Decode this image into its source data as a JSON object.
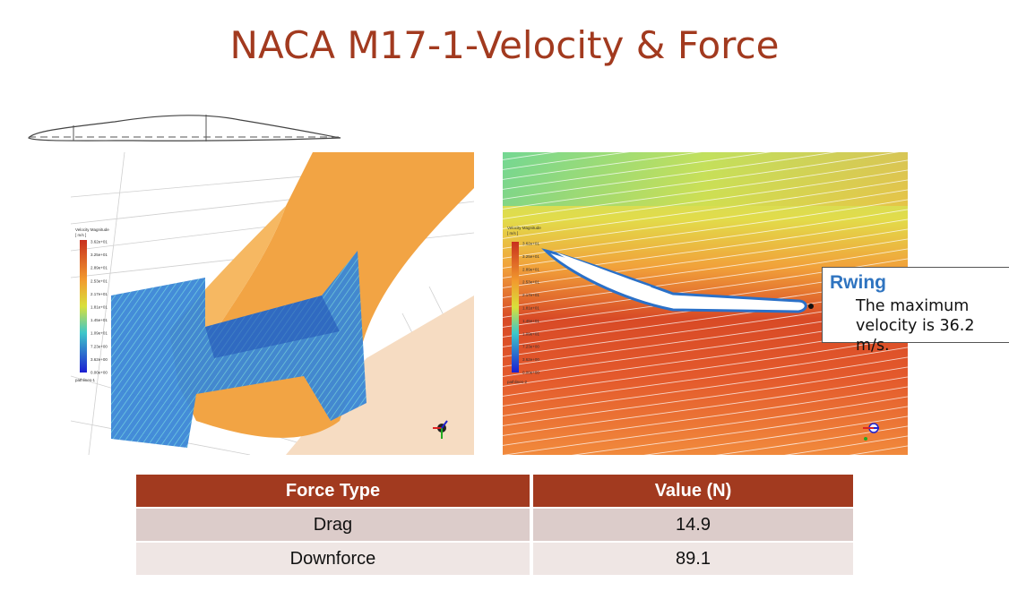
{
  "slide": {
    "title": "NACA M17-1-Velocity & Force"
  },
  "left_panel": {
    "legend": {
      "title_line1": "Velocity Magnitude",
      "title_line2": "[ m/s ]",
      "ticks": [
        "3.62e+01",
        "3.25e+01",
        "2.89e+01",
        "2.53e+01",
        "2.17e+01",
        "1.81e+01",
        "1.45e+01",
        "1.09e+01",
        "7.23e+00",
        "3.62e+00",
        "0.00e+00"
      ],
      "footer": "pathlines-1"
    }
  },
  "right_panel": {
    "legend": {
      "title_line1": "Velocity Magnitude",
      "title_line2": "[ m/s ]",
      "ticks": [
        "3.62e+01",
        "3.25e+01",
        "2.89e+01",
        "2.53e+01",
        "2.17e+01",
        "1.81e+01",
        "1.45e+01",
        "1.09e+01",
        "7.23e+00",
        "3.62e+00",
        "0.00e+00"
      ],
      "footer": "pathlines-2"
    }
  },
  "callout": {
    "title": "Rwing",
    "body": "The maximum velocity is 36.2 m/s."
  },
  "force_table": {
    "headers": [
      "Force Type",
      "Value (N)"
    ],
    "rows": [
      {
        "type": "Drag",
        "value": "14.9"
      },
      {
        "type": "Downforce",
        "value": "89.1"
      }
    ]
  },
  "colors": {
    "accent": "#a23a1f",
    "callout_title": "#2f74c0",
    "row_dark": "#dcccca",
    "row_light": "#efe6e4"
  }
}
